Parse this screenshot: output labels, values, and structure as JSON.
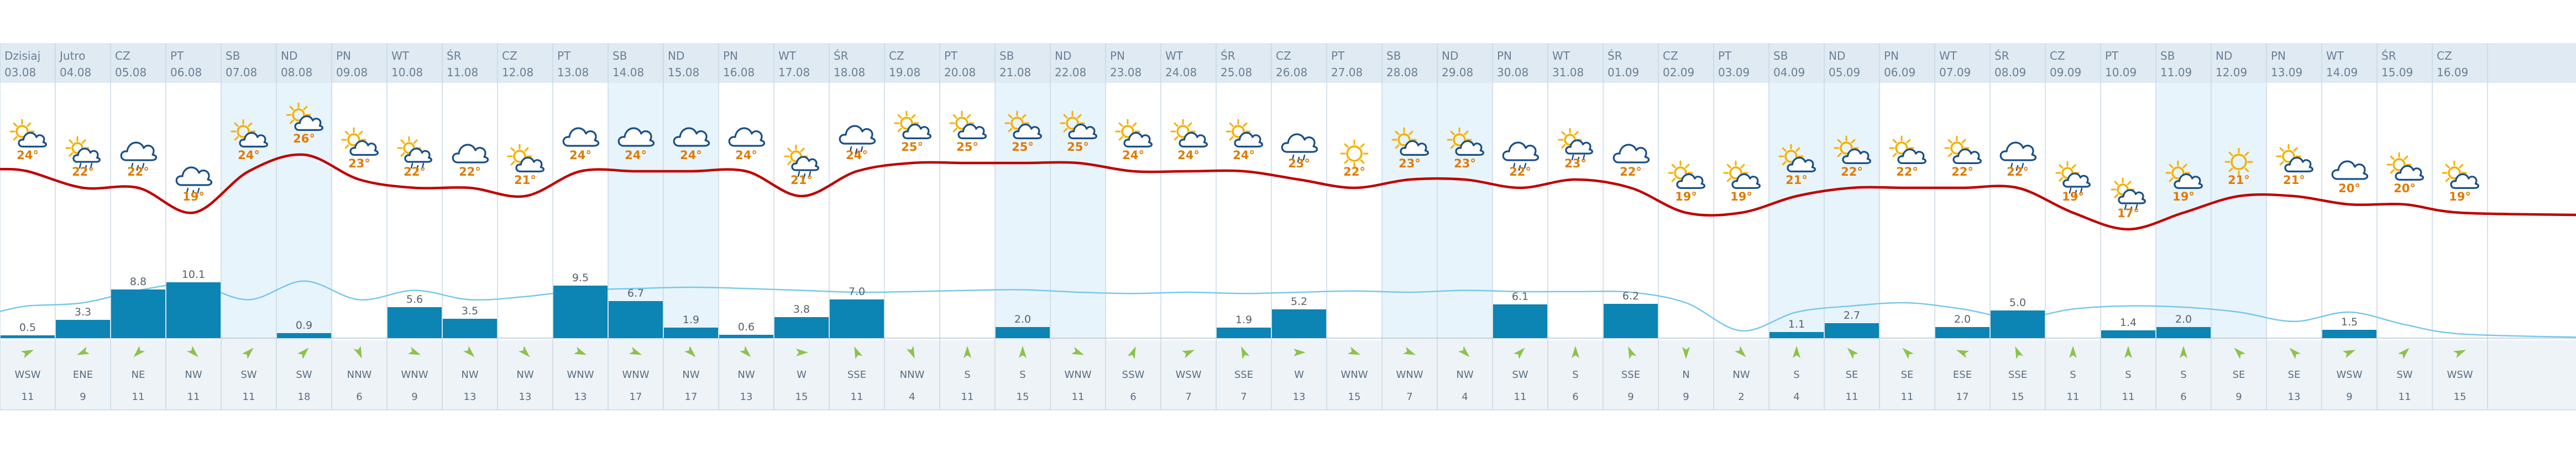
{
  "colors": {
    "weekend_bg": "#e8f4fb",
    "header_bg": "#dfeaf3",
    "wind_bg": "#eef3f7",
    "temp_line": "#c00000",
    "humidity_line": "#78c8ea",
    "rain_bar": "#0c84b4",
    "sun": "#f5b000",
    "cloud": "#1a4f88",
    "arrow": "#8bc34a",
    "temp_text": "#e07b00"
  },
  "days": [
    {
      "name": "Dzisiaj",
      "date": "03.08",
      "weekend": false,
      "temp": "24°",
      "temp_val": 24,
      "icon": "partly-cloudy-icon",
      "rain": "0.5",
      "rain_val": 0.5,
      "wind_dir": "WSW",
      "wind_speed": "11",
      "wind_deg": 247,
      "humidity": 0.5
    },
    {
      "name": "Jutro",
      "date": "04.08",
      "weekend": false,
      "temp": "22°",
      "temp_val": 22,
      "icon": "partly-cloudy-rain-icon",
      "rain": "3.3",
      "rain_val": 3.3,
      "wind_dir": "ENE",
      "wind_speed": "9",
      "wind_deg": 67,
      "humidity": 0.55
    },
    {
      "name": "CZ",
      "date": "05.08",
      "weekend": false,
      "temp": "22°",
      "temp_val": 22,
      "icon": "cloud-rain-icon",
      "rain": "8.8",
      "rain_val": 8.8,
      "wind_dir": "NE",
      "wind_speed": "11",
      "wind_deg": 45,
      "humidity": 0.75
    },
    {
      "name": "PT",
      "date": "06.08",
      "weekend": false,
      "temp": "19°",
      "temp_val": 19,
      "icon": "cloud-rain-icon",
      "rain": "10.1",
      "rain_val": 10.1,
      "wind_dir": "NW",
      "wind_speed": "11",
      "wind_deg": 315,
      "humidity": 0.85
    },
    {
      "name": "SB",
      "date": "07.08",
      "weekend": true,
      "temp": "24°",
      "temp_val": 24,
      "icon": "partly-cloudy-icon",
      "rain": "",
      "rain_val": 0,
      "wind_dir": "SW",
      "wind_speed": "11",
      "wind_deg": 225,
      "humidity": 0.6
    },
    {
      "name": "ND",
      "date": "08.08",
      "weekend": true,
      "temp": "26°",
      "temp_val": 26,
      "icon": "partly-cloudy-icon",
      "rain": "0.9",
      "rain_val": 0.9,
      "wind_dir": "SW",
      "wind_speed": "18",
      "wind_deg": 225,
      "humidity": 0.9
    },
    {
      "name": "PN",
      "date": "09.08",
      "weekend": false,
      "temp": "23°",
      "temp_val": 23,
      "icon": "partly-cloudy-icon",
      "rain": "",
      "rain_val": 0,
      "wind_dir": "NNW",
      "wind_speed": "6",
      "wind_deg": 337,
      "humidity": 0.6
    },
    {
      "name": "WT",
      "date": "10.08",
      "weekend": false,
      "temp": "22°",
      "temp_val": 22,
      "icon": "partly-cloudy-rain-icon",
      "rain": "5.6",
      "rain_val": 5.6,
      "wind_dir": "WNW",
      "wind_speed": "9",
      "wind_deg": 292,
      "humidity": 0.75
    },
    {
      "name": "ŚR",
      "date": "11.08",
      "weekend": false,
      "temp": "22°",
      "temp_val": 22,
      "icon": "cloud-icon",
      "rain": "3.5",
      "rain_val": 3.5,
      "wind_dir": "NW",
      "wind_speed": "13",
      "wind_deg": 315,
      "humidity": 0.6
    },
    {
      "name": "CZ",
      "date": "12.08",
      "weekend": false,
      "temp": "21°",
      "temp_val": 21,
      "icon": "partly-cloudy-icon",
      "rain": "",
      "rain_val": 0,
      "wind_dir": "NW",
      "wind_speed": "13",
      "wind_deg": 315,
      "humidity": 0.65
    },
    {
      "name": "PT",
      "date": "13.08",
      "weekend": false,
      "temp": "24°",
      "temp_val": 24,
      "icon": "cloud-icon",
      "rain": "9.5",
      "rain_val": 9.5,
      "wind_dir": "WNW",
      "wind_speed": "13",
      "wind_deg": 292,
      "humidity": 0.75
    },
    {
      "name": "SB",
      "date": "14.08",
      "weekend": true,
      "temp": "24°",
      "temp_val": 24,
      "icon": "cloud-icon",
      "rain": "6.7",
      "rain_val": 6.7,
      "wind_dir": "WNW",
      "wind_speed": "17",
      "wind_deg": 292,
      "humidity": 0.78
    },
    {
      "name": "ND",
      "date": "15.08",
      "weekend": true,
      "temp": "24°",
      "temp_val": 24,
      "icon": "cloud-icon",
      "rain": "1.9",
      "rain_val": 1.9,
      "wind_dir": "NW",
      "wind_speed": "17",
      "wind_deg": 315,
      "humidity": 0.8
    },
    {
      "name": "PN",
      "date": "16.08",
      "weekend": false,
      "temp": "24°",
      "temp_val": 24,
      "icon": "cloud-icon",
      "rain": "0.6",
      "rain_val": 0.6,
      "wind_dir": "NW",
      "wind_speed": "13",
      "wind_deg": 315,
      "humidity": 0.78
    },
    {
      "name": "WT",
      "date": "17.08",
      "weekend": false,
      "temp": "21°",
      "temp_val": 21,
      "icon": "partly-cloudy-rain-icon",
      "rain": "3.8",
      "rain_val": 3.8,
      "wind_dir": "W",
      "wind_speed": "15",
      "wind_deg": 270,
      "humidity": 0.75
    },
    {
      "name": "ŚR",
      "date": "18.08",
      "weekend": false,
      "temp": "24°",
      "temp_val": 24,
      "icon": "cloud-rain-icon",
      "rain": "7.0",
      "rain_val": 7.0,
      "wind_dir": "SSE",
      "wind_speed": "11",
      "wind_deg": 157,
      "humidity": 0.72
    },
    {
      "name": "CZ",
      "date": "19.08",
      "weekend": false,
      "temp": "25°",
      "temp_val": 25,
      "icon": "partly-cloudy-icon",
      "rain": "",
      "rain_val": 0,
      "wind_dir": "NNW",
      "wind_speed": "4",
      "wind_deg": 337,
      "humidity": 0.73
    },
    {
      "name": "PT",
      "date": "20.08",
      "weekend": false,
      "temp": "25°",
      "temp_val": 25,
      "icon": "partly-cloudy-icon",
      "rain": "",
      "rain_val": 0,
      "wind_dir": "S",
      "wind_speed": "11",
      "wind_deg": 180,
      "humidity": 0.75
    },
    {
      "name": "SB",
      "date": "21.08",
      "weekend": true,
      "temp": "25°",
      "temp_val": 25,
      "icon": "partly-cloudy-icon",
      "rain": "2.0",
      "rain_val": 2.0,
      "wind_dir": "S",
      "wind_speed": "15",
      "wind_deg": 180,
      "humidity": 0.76
    },
    {
      "name": "ND",
      "date": "22.08",
      "weekend": true,
      "temp": "25°",
      "temp_val": 25,
      "icon": "partly-cloudy-icon",
      "rain": "",
      "rain_val": 0,
      "wind_dir": "WNW",
      "wind_speed": "11",
      "wind_deg": 292,
      "humidity": 0.72
    },
    {
      "name": "PN",
      "date": "23.08",
      "weekend": false,
      "temp": "24°",
      "temp_val": 24,
      "icon": "partly-cloudy-icon",
      "rain": "",
      "rain_val": 0,
      "wind_dir": "SSW",
      "wind_speed": "6",
      "wind_deg": 202,
      "humidity": 0.7
    },
    {
      "name": "WT",
      "date": "24.08",
      "weekend": false,
      "temp": "24°",
      "temp_val": 24,
      "icon": "partly-cloudy-icon",
      "rain": "",
      "rain_val": 0,
      "wind_dir": "WSW",
      "wind_speed": "7",
      "wind_deg": 247,
      "humidity": 0.72
    },
    {
      "name": "ŚR",
      "date": "25.08",
      "weekend": false,
      "temp": "24°",
      "temp_val": 24,
      "icon": "partly-cloudy-icon",
      "rain": "1.9",
      "rain_val": 1.9,
      "wind_dir": "SSE",
      "wind_speed": "7",
      "wind_deg": 157,
      "humidity": 0.7
    },
    {
      "name": "CZ",
      "date": "26.08",
      "weekend": false,
      "temp": "23°",
      "temp_val": 23,
      "icon": "cloud-rain-icon",
      "rain": "5.2",
      "rain_val": 5.2,
      "wind_dir": "W",
      "wind_speed": "13",
      "wind_deg": 270,
      "humidity": 0.72
    },
    {
      "name": "PT",
      "date": "27.08",
      "weekend": false,
      "temp": "22°",
      "temp_val": 22,
      "icon": "sun-icon",
      "rain": "",
      "rain_val": 0,
      "wind_dir": "WNW",
      "wind_speed": "15",
      "wind_deg": 292,
      "humidity": 0.74
    },
    {
      "name": "SB",
      "date": "28.08",
      "weekend": true,
      "temp": "23°",
      "temp_val": 23,
      "icon": "partly-cloudy-icon",
      "rain": "",
      "rain_val": 0,
      "wind_dir": "WNW",
      "wind_speed": "7",
      "wind_deg": 292,
      "humidity": 0.72
    },
    {
      "name": "ND",
      "date": "29.08",
      "weekend": true,
      "temp": "23°",
      "temp_val": 23,
      "icon": "partly-cloudy-icon",
      "rain": "",
      "rain_val": 0,
      "wind_dir": "NW",
      "wind_speed": "4",
      "wind_deg": 315,
      "humidity": 0.75
    },
    {
      "name": "PN",
      "date": "30.08",
      "weekend": false,
      "temp": "22°",
      "temp_val": 22,
      "icon": "cloud-rain-icon",
      "rain": "6.1",
      "rain_val": 6.1,
      "wind_dir": "SW",
      "wind_speed": "11",
      "wind_deg": 225,
      "humidity": 0.73
    },
    {
      "name": "WT",
      "date": "31.08",
      "weekend": false,
      "temp": "23°",
      "temp_val": 23,
      "icon": "partly-cloudy-rain-icon",
      "rain": "",
      "rain_val": 0,
      "wind_dir": "S",
      "wind_speed": "6",
      "wind_deg": 180,
      "humidity": 0.73
    },
    {
      "name": "ŚR",
      "date": "01.09",
      "weekend": false,
      "temp": "22°",
      "temp_val": 22,
      "icon": "cloud-icon",
      "rain": "6.2",
      "rain_val": 6.2,
      "wind_dir": "SSE",
      "wind_speed": "9",
      "wind_deg": 157,
      "humidity": 0.72
    },
    {
      "name": "CZ",
      "date": "02.09",
      "weekend": false,
      "temp": "19°",
      "temp_val": 19,
      "icon": "partly-cloudy-icon",
      "rain": "",
      "rain_val": 0,
      "wind_dir": "N",
      "wind_speed": "9",
      "wind_deg": 0,
      "humidity": 0.55
    },
    {
      "name": "PT",
      "date": "03.09",
      "weekend": false,
      "temp": "19°",
      "temp_val": 19,
      "icon": "partly-cloudy-icon",
      "rain": "",
      "rain_val": 0,
      "wind_dir": "NW",
      "wind_speed": "2",
      "wind_deg": 315,
      "humidity": 0.1
    },
    {
      "name": "SB",
      "date": "04.09",
      "weekend": true,
      "temp": "21°",
      "temp_val": 21,
      "icon": "partly-cloudy-icon",
      "rain": "1.1",
      "rain_val": 1.1,
      "wind_dir": "S",
      "wind_speed": "4",
      "wind_deg": 180,
      "humidity": 0.4
    },
    {
      "name": "ND",
      "date": "05.09",
      "weekend": true,
      "temp": "22°",
      "temp_val": 22,
      "icon": "partly-cloudy-icon",
      "rain": "2.7",
      "rain_val": 2.7,
      "wind_dir": "SE",
      "wind_speed": "11",
      "wind_deg": 135,
      "humidity": 0.5
    },
    {
      "name": "PN",
      "date": "06.09",
      "weekend": false,
      "temp": "22°",
      "temp_val": 22,
      "icon": "partly-cloudy-icon",
      "rain": "",
      "rain_val": 0,
      "wind_dir": "SE",
      "wind_speed": "11",
      "wind_deg": 135,
      "humidity": 0.55
    },
    {
      "name": "WT",
      "date": "07.09",
      "weekend": false,
      "temp": "22°",
      "temp_val": 22,
      "icon": "partly-cloudy-icon",
      "rain": "2.0",
      "rain_val": 2.0,
      "wind_dir": "ESE",
      "wind_speed": "17",
      "wind_deg": 112,
      "humidity": 0.45
    },
    {
      "name": "ŚR",
      "date": "08.09",
      "weekend": false,
      "temp": "22°",
      "temp_val": 22,
      "icon": "cloud-rain-icon",
      "rain": "5.0",
      "rain_val": 5.0,
      "wind_dir": "SSE",
      "wind_speed": "15",
      "wind_deg": 157,
      "humidity": 0.3
    },
    {
      "name": "CZ",
      "date": "09.09",
      "weekend": false,
      "temp": "19°",
      "temp_val": 19,
      "icon": "partly-cloudy-rain-icon",
      "rain": "",
      "rain_val": 0,
      "wind_dir": "S",
      "wind_speed": "11",
      "wind_deg": 180,
      "humidity": 0.45
    },
    {
      "name": "PT",
      "date": "10.09",
      "weekend": false,
      "temp": "17°",
      "temp_val": 17,
      "icon": "partly-cloudy-rain-icon",
      "rain": "1.4",
      "rain_val": 1.4,
      "wind_dir": "S",
      "wind_speed": "11",
      "wind_deg": 180,
      "humidity": 0.5
    },
    {
      "name": "SB",
      "date": "11.09",
      "weekend": true,
      "temp": "19°",
      "temp_val": 19,
      "icon": "partly-cloudy-icon",
      "rain": "2.0",
      "rain_val": 2.0,
      "wind_dir": "S",
      "wind_speed": "6",
      "wind_deg": 180,
      "humidity": 0.48
    },
    {
      "name": "ND",
      "date": "12.09",
      "weekend": true,
      "temp": "21°",
      "temp_val": 21,
      "icon": "sun-icon",
      "rain": "",
      "rain_val": 0,
      "wind_dir": "SE",
      "wind_speed": "9",
      "wind_deg": 135,
      "humidity": 0.4
    },
    {
      "name": "PN",
      "date": "13.09",
      "weekend": false,
      "temp": "21°",
      "temp_val": 21,
      "icon": "partly-cloudy-icon",
      "rain": "",
      "rain_val": 0,
      "wind_dir": "SE",
      "wind_speed": "13",
      "wind_deg": 135,
      "humidity": 0.25
    },
    {
      "name": "WT",
      "date": "14.09",
      "weekend": false,
      "temp": "20°",
      "temp_val": 20,
      "icon": "cloud-icon",
      "rain": "1.5",
      "rain_val": 1.5,
      "wind_dir": "WSW",
      "wind_speed": "9",
      "wind_deg": 247,
      "humidity": 0.4
    },
    {
      "name": "ŚR",
      "date": "15.09",
      "weekend": false,
      "temp": "20°",
      "temp_val": 20,
      "icon": "partly-cloudy-icon",
      "rain": "",
      "rain_val": 0,
      "wind_dir": "SW",
      "wind_speed": "11",
      "wind_deg": 225,
      "humidity": 0.2
    },
    {
      "name": "CZ",
      "date": "16.09",
      "weekend": false,
      "temp": "19°",
      "temp_val": 19,
      "icon": "partly-cloudy-icon",
      "rain": "",
      "rain_val": 0,
      "wind_dir": "WSW",
      "wind_speed": "15",
      "wind_deg": 247,
      "humidity": 0.05
    }
  ]
}
